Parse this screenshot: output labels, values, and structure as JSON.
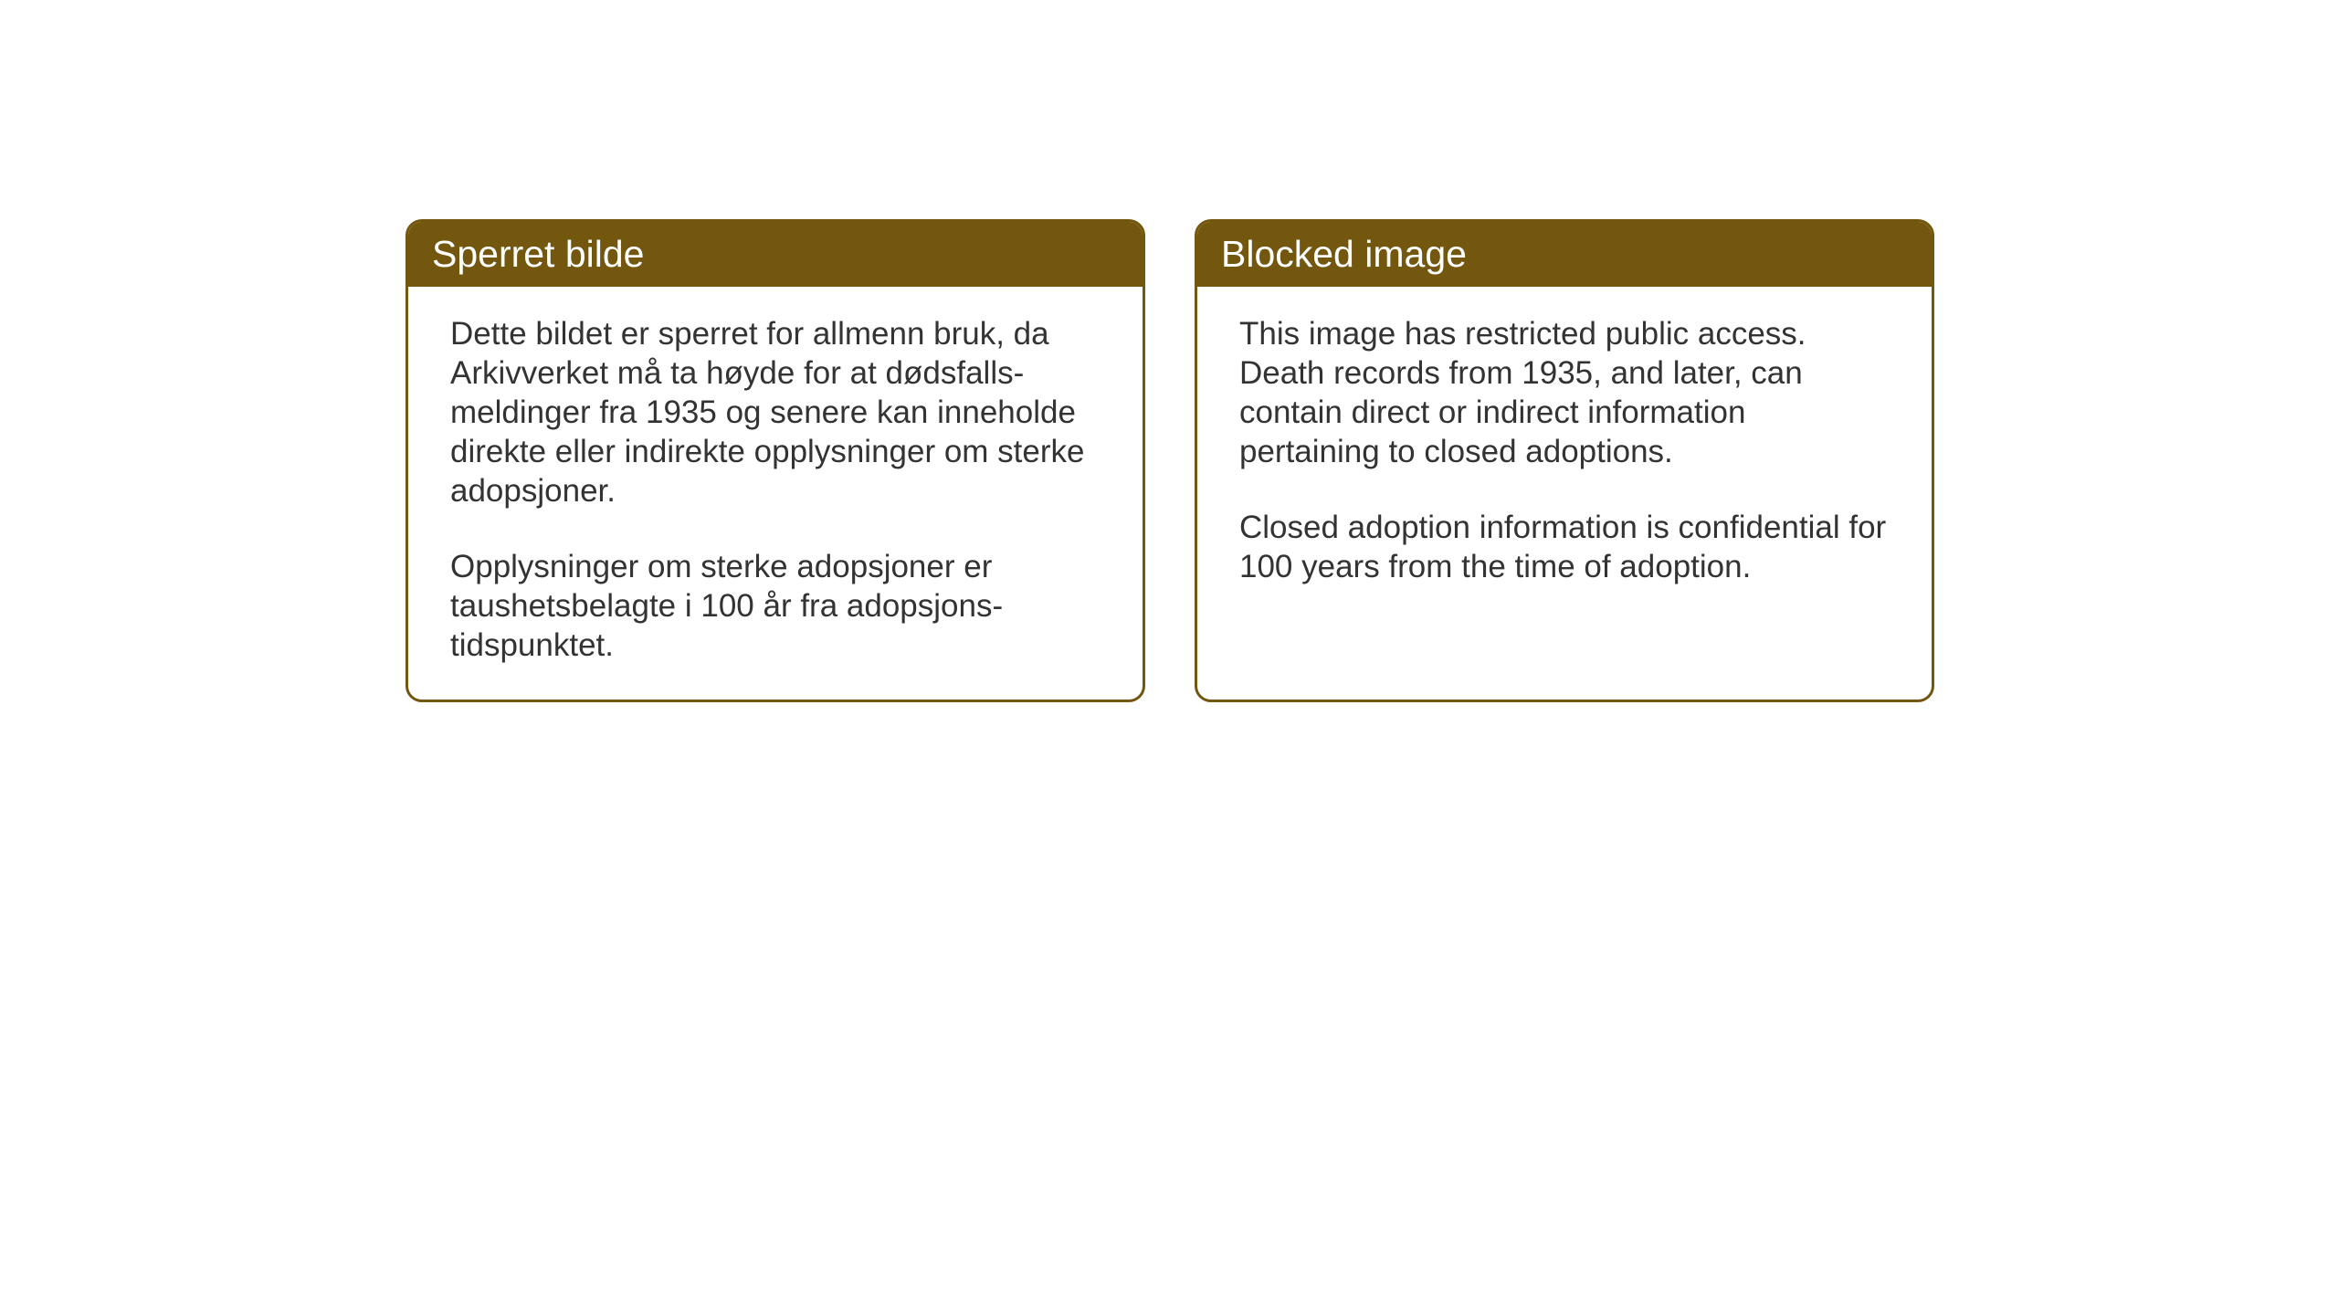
{
  "cards": {
    "norwegian": {
      "title": "Sperret bilde",
      "paragraph1": "Dette bildet er sperret for allmenn bruk, da Arkivverket må ta høyde for at dødsfalls-meldinger fra 1935 og senere kan inneholde direkte eller indirekte opplysninger om sterke adopsjoner.",
      "paragraph2": "Opplysninger om sterke adopsjoner er taushetsbelagte i 100 år fra adopsjons-tidspunktet."
    },
    "english": {
      "title": "Blocked image",
      "paragraph1": "This image has restricted public access. Death records from 1935, and later, can contain direct or indirect information pertaining to closed adoptions.",
      "paragraph2": "Closed adoption information is confidential for 100 years from the time of adoption."
    }
  },
  "styling": {
    "header_background": "#73570f",
    "header_text_color": "#ffffff",
    "border_color": "#73570f",
    "body_text_color": "#333333",
    "background_color": "#ffffff",
    "title_fontsize": 41,
    "body_fontsize": 35,
    "border_radius": 18,
    "border_width": 3
  }
}
